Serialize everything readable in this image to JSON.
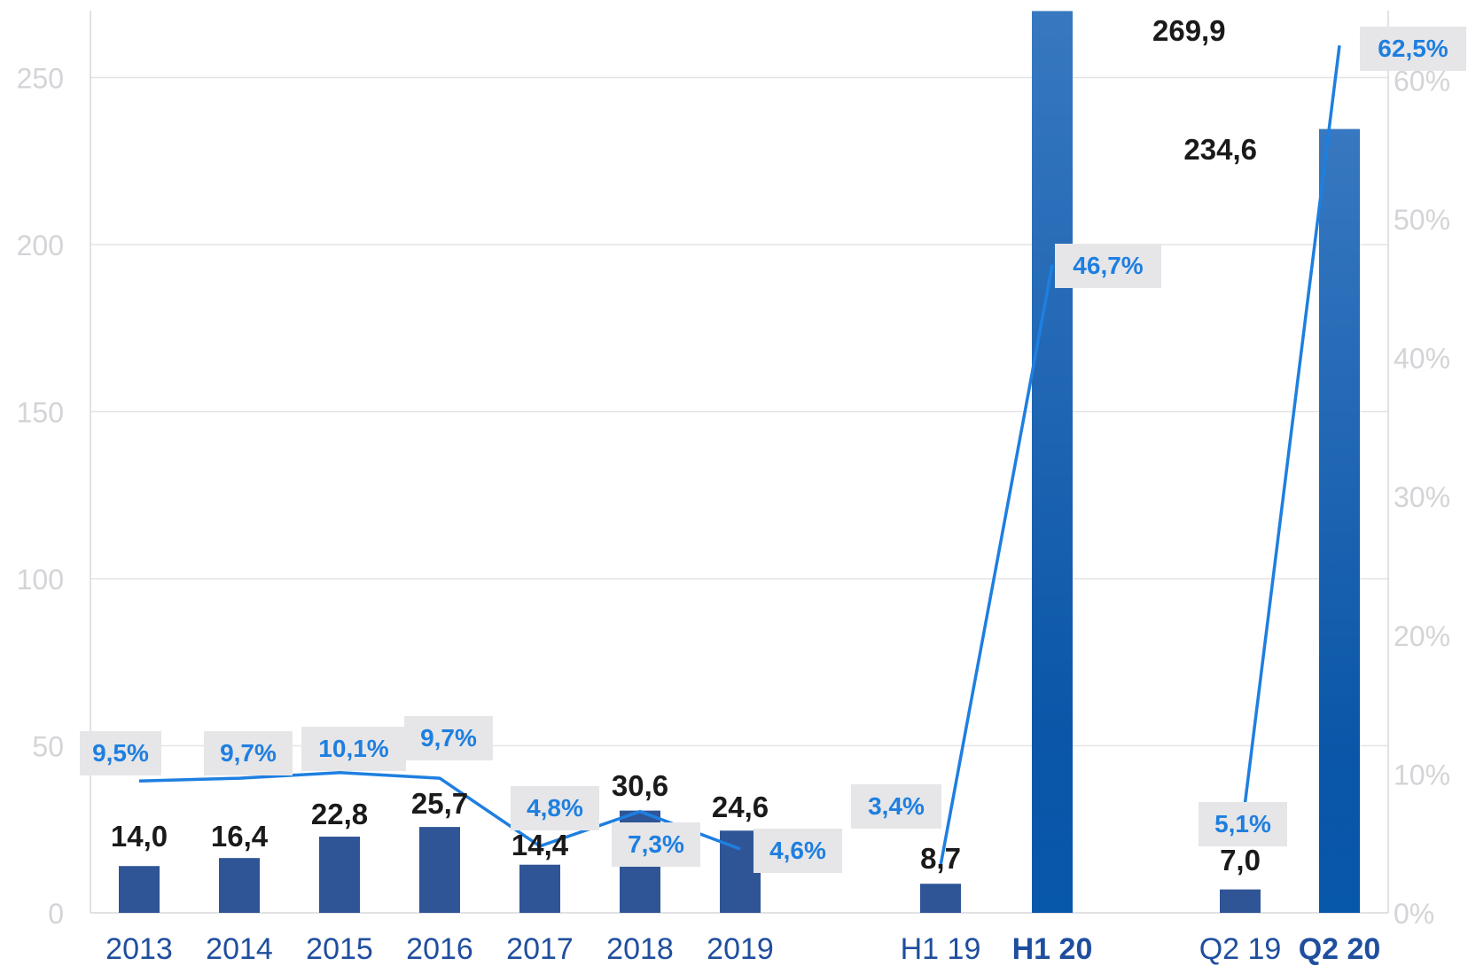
{
  "chart_data": {
    "type": "bar",
    "categories": [
      "2013",
      "2014",
      "2015",
      "2016",
      "2017",
      "2018",
      "2019",
      "H1 19",
      "H1 20",
      "Q2 19",
      "Q2 20"
    ],
    "bold_categories": [
      "H1 20",
      "Q2 20"
    ],
    "series": [
      {
        "type": "bar",
        "axis": "left",
        "values": [
          14.0,
          16.4,
          22.8,
          25.7,
          14.4,
          30.6,
          24.6,
          8.7,
          269.9,
          7.0,
          234.6
        ],
        "labels": [
          "14,0",
          "16,4",
          "22,8",
          "25,7",
          "14,4",
          "30,6",
          "24,6",
          "8,7",
          "269,9",
          "7,0",
          "234,6"
        ],
        "colors": [
          "#2f5597",
          "#2f5597",
          "#2f5597",
          "#2f5597",
          "#2f5597",
          "#2f5597",
          "#2f5597",
          "#2f5597",
          "#1f6bc4",
          "#2f5597",
          "#1f6bc4"
        ]
      },
      {
        "type": "line",
        "axis": "right",
        "values": [
          9.5,
          9.7,
          10.1,
          9.7,
          4.8,
          7.3,
          4.6,
          3.4,
          46.7,
          5.1,
          62.5
        ],
        "labels": [
          "9,5%",
          "9,7%",
          "10,1%",
          "9,7%",
          "4,8%",
          "7,3%",
          "4,6%",
          "3,4%",
          "46,7%",
          "5,1%",
          "62,5%"
        ],
        "color": "#1e7fe0"
      }
    ],
    "y_left": {
      "range": [
        0,
        270
      ],
      "ticks": [
        0,
        50,
        100,
        150,
        200,
        250
      ],
      "tick_labels": [
        "0",
        "50",
        "100",
        "150",
        "200",
        "250"
      ]
    },
    "y_right": {
      "range": [
        0,
        65
      ],
      "ticks": [
        0,
        10,
        20,
        30,
        40,
        50,
        60
      ],
      "tick_labels": [
        "0%",
        "10%",
        "20%",
        "30%",
        "40%",
        "50%",
        "60%"
      ]
    },
    "grid": true,
    "legend": "none",
    "title": "",
    "xlabel": "",
    "ylabel": ""
  }
}
